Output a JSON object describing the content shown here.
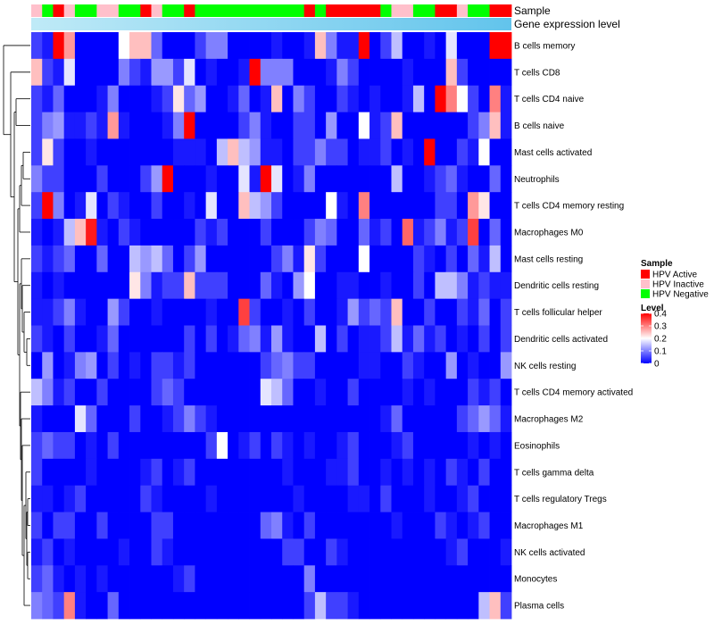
{
  "chart_data": {
    "type": "heatmap",
    "annotations": {
      "sample_track_label": "Sample",
      "expression_track_label": "Gene expression level",
      "sample_groups": [
        "Inactive",
        "Negative",
        "Active",
        "Inactive",
        "Negative",
        "Negative",
        "Inactive",
        "Inactive",
        "Negative",
        "Negative",
        "Active",
        "Inactive",
        "Negative",
        "Negative",
        "Active",
        "Negative",
        "Negative",
        "Negative",
        "Negative",
        "Negative",
        "Negative",
        "Negative",
        "Negative",
        "Negative",
        "Negative",
        "Active",
        "Negative",
        "Active",
        "Active",
        "Active",
        "Active",
        "Active",
        "Negative",
        "Inactive",
        "Inactive",
        "Negative",
        "Negative",
        "Active",
        "Active",
        "Inactive",
        "Negative",
        "Negative",
        "Active",
        "Active"
      ]
    },
    "rows": [
      "B cells memory",
      "T cells CD8",
      "T cells CD4 naive",
      "B cells naive",
      "Mast cells activated",
      "Neutrophils",
      "T cells CD4 memory resting",
      "Macrophages M0",
      "Mast cells resting",
      "Dendritic cells resting",
      "T cells follicular helper",
      "Dendritic cells activated",
      "NK cells resting",
      "T cells CD4 memory activated",
      "Macrophages M2",
      "Eosinophils",
      "T cells gamma delta",
      "T cells regulatory  Tregs",
      "Macrophages M1",
      "NK cells activated",
      "Monocytes",
      "Plasma cells"
    ],
    "n_columns": 44,
    "matrix": [
      [
        0.05,
        0.02,
        0.42,
        0.28,
        0.0,
        0.0,
        0.0,
        0.0,
        0.2,
        0.25,
        0.25,
        0.08,
        0.0,
        0.0,
        0.0,
        0.05,
        0.1,
        0.1,
        0.0,
        0.0,
        0.0,
        0.0,
        0.02,
        0.0,
        0.0,
        0.02,
        0.25,
        0.1,
        0.02,
        0.02,
        0.45,
        0.0,
        0.05,
        0.15,
        0.0,
        0.0,
        0.02,
        0.0,
        0.18,
        0.0,
        0.0,
        0.0,
        0.42,
        0.45
      ],
      [
        0.25,
        0.05,
        0.02,
        0.18,
        0.0,
        0.0,
        0.0,
        0.0,
        0.1,
        0.05,
        0.02,
        0.12,
        0.12,
        0.05,
        0.18,
        0.0,
        0.02,
        0.0,
        0.0,
        0.02,
        0.45,
        0.1,
        0.1,
        0.1,
        0.0,
        0.0,
        0.0,
        0.02,
        0.1,
        0.05,
        0.0,
        0.0,
        0.0,
        0.0,
        0.02,
        0.0,
        0.0,
        0.0,
        0.25,
        0.05,
        0.0,
        0.0,
        0.0,
        0.0
      ],
      [
        0.05,
        0.02,
        0.08,
        0.0,
        0.0,
        0.0,
        0.02,
        0.1,
        0.0,
        0.0,
        0.0,
        0.02,
        0.05,
        0.22,
        0.08,
        0.12,
        0.0,
        0.0,
        0.02,
        0.08,
        0.0,
        0.02,
        0.25,
        0.0,
        0.1,
        0.05,
        0.0,
        0.0,
        0.05,
        0.02,
        0.0,
        0.02,
        0.0,
        0.0,
        0.02,
        0.15,
        0.0,
        0.45,
        0.3,
        0.2,
        0.05,
        0.0,
        0.3,
        0.02
      ],
      [
        0.05,
        0.1,
        0.12,
        0.02,
        0.02,
        0.05,
        0.02,
        0.28,
        0.02,
        0.0,
        0.0,
        0.0,
        0.02,
        0.1,
        0.4,
        0.0,
        0.0,
        0.0,
        0.0,
        0.05,
        0.1,
        0.02,
        0.0,
        0.0,
        0.05,
        0.05,
        0.0,
        0.12,
        0.0,
        0.0,
        0.2,
        0.02,
        0.05,
        0.25,
        0.0,
        0.0,
        0.0,
        0.0,
        0.0,
        0.0,
        0.05,
        0.1,
        0.25,
        0.02
      ],
      [
        0.05,
        0.22,
        0.05,
        0.0,
        0.0,
        0.02,
        0.0,
        0.0,
        0.0,
        0.0,
        0.0,
        0.0,
        0.0,
        0.02,
        0.02,
        0.02,
        0.0,
        0.15,
        0.25,
        0.15,
        0.12,
        0.02,
        0.02,
        0.0,
        0.05,
        0.05,
        0.1,
        0.05,
        0.05,
        0.0,
        0.02,
        0.02,
        0.05,
        0.0,
        0.02,
        0.0,
        0.45,
        0.0,
        0.0,
        0.05,
        0.02,
        0.2,
        0.0,
        0.0
      ],
      [
        0.1,
        0.05,
        0.05,
        0.0,
        0.0,
        0.0,
        0.05,
        0.0,
        0.0,
        0.0,
        0.05,
        0.12,
        0.45,
        0.0,
        0.0,
        0.0,
        0.02,
        0.0,
        0.0,
        0.18,
        0.02,
        0.45,
        0.18,
        0.0,
        0.02,
        0.1,
        0.0,
        0.0,
        0.0,
        0.0,
        0.0,
        0.0,
        0.0,
        0.15,
        0.0,
        0.0,
        0.02,
        0.05,
        0.08,
        0.02,
        0.0,
        0.0,
        0.08,
        0.0
      ],
      [
        0.05,
        0.4,
        0.1,
        0.0,
        0.02,
        0.18,
        0.0,
        0.05,
        0.02,
        0.0,
        0.0,
        0.05,
        0.0,
        0.0,
        0.02,
        0.0,
        0.18,
        0.0,
        0.0,
        0.25,
        0.15,
        0.12,
        0.05,
        0.0,
        0.0,
        0.0,
        0.0,
        0.2,
        0.02,
        0.0,
        0.3,
        0.0,
        0.0,
        0.0,
        0.0,
        0.0,
        0.0,
        0.05,
        0.05,
        0.0,
        0.28,
        0.22,
        0.0,
        0.0
      ],
      [
        0.02,
        0.0,
        0.02,
        0.15,
        0.25,
        0.38,
        0.02,
        0.0,
        0.05,
        0.02,
        0.0,
        0.0,
        0.0,
        0.0,
        0.0,
        0.05,
        0.02,
        0.05,
        0.0,
        0.0,
        0.0,
        0.05,
        0.0,
        0.0,
        0.0,
        0.05,
        0.1,
        0.08,
        0.0,
        0.0,
        0.08,
        0.02,
        0.05,
        0.0,
        0.32,
        0.02,
        0.05,
        0.1,
        0.02,
        0.05,
        0.35,
        0.0,
        0.08,
        0.0
      ],
      [
        0.05,
        0.02,
        0.05,
        0.08,
        0.0,
        0.0,
        0.08,
        0.0,
        0.0,
        0.15,
        0.12,
        0.15,
        0.08,
        0.0,
        0.05,
        0.12,
        0.0,
        0.0,
        0.0,
        0.0,
        0.0,
        0.0,
        0.05,
        0.1,
        0.02,
        0.22,
        0.05,
        0.0,
        0.0,
        0.0,
        0.2,
        0.0,
        0.0,
        0.0,
        0.0,
        0.05,
        0.02,
        0.0,
        0.05,
        0.0,
        0.08,
        0.02,
        0.15,
        0.0
      ],
      [
        0.02,
        0.0,
        0.02,
        0.0,
        0.0,
        0.0,
        0.0,
        0.0,
        0.0,
        0.22,
        0.1,
        0.02,
        0.05,
        0.05,
        0.25,
        0.05,
        0.05,
        0.05,
        0.0,
        0.0,
        0.0,
        0.08,
        0.02,
        0.0,
        0.12,
        0.2,
        0.0,
        0.0,
        0.02,
        0.02,
        0.0,
        0.0,
        0.02,
        0.0,
        0.0,
        0.05,
        0.0,
        0.15,
        0.15,
        0.1,
        0.02,
        0.05,
        0.02,
        0.02
      ],
      [
        0.02,
        0.02,
        0.05,
        0.1,
        0.02,
        0.0,
        0.0,
        0.12,
        0.05,
        0.0,
        0.0,
        0.02,
        0.0,
        0.0,
        0.0,
        0.0,
        0.02,
        0.0,
        0.0,
        0.35,
        0.05,
        0.0,
        0.0,
        0.02,
        0.0,
        0.05,
        0.0,
        0.0,
        0.02,
        0.12,
        0.05,
        0.08,
        0.05,
        0.25,
        0.0,
        0.0,
        0.05,
        0.0,
        0.0,
        0.05,
        0.02,
        0.08,
        0.0,
        0.05
      ],
      [
        0.05,
        0.02,
        0.0,
        0.05,
        0.0,
        0.0,
        0.02,
        0.08,
        0.0,
        0.0,
        0.0,
        0.0,
        0.0,
        0.0,
        0.05,
        0.0,
        0.05,
        0.0,
        0.02,
        0.08,
        0.1,
        0.02,
        0.12,
        0.02,
        0.0,
        0.0,
        0.15,
        0.0,
        0.05,
        0.0,
        0.02,
        0.02,
        0.05,
        0.15,
        0.02,
        0.08,
        0.02,
        0.05,
        0.0,
        0.02,
        0.0,
        0.05,
        0.0,
        0.05
      ],
      [
        0.0,
        0.12,
        0.0,
        0.02,
        0.1,
        0.12,
        0.0,
        0.05,
        0.0,
        0.02,
        0.0,
        0.05,
        0.05,
        0.02,
        0.05,
        0.0,
        0.0,
        0.0,
        0.0,
        0.0,
        0.0,
        0.05,
        0.08,
        0.1,
        0.05,
        0.05,
        0.0,
        0.0,
        0.0,
        0.0,
        0.02,
        0.02,
        0.0,
        0.0,
        0.05,
        0.02,
        0.0,
        0.0,
        0.12,
        0.0,
        0.02,
        0.0,
        0.0,
        0.12
      ],
      [
        0.15,
        0.1,
        0.02,
        0.05,
        0.0,
        0.0,
        0.05,
        0.0,
        0.0,
        0.0,
        0.0,
        0.05,
        0.08,
        0.05,
        0.0,
        0.0,
        0.0,
        0.0,
        0.0,
        0.0,
        0.0,
        0.18,
        0.15,
        0.08,
        0.0,
        0.0,
        0.02,
        0.0,
        0.0,
        0.05,
        0.0,
        0.0,
        0.0,
        0.0,
        0.02,
        0.0,
        0.02,
        0.0,
        0.0,
        0.0,
        0.05,
        0.02,
        0.05,
        0.0
      ],
      [
        0.02,
        0.0,
        0.0,
        0.0,
        0.18,
        0.08,
        0.0,
        0.0,
        0.0,
        0.05,
        0.0,
        0.0,
        0.02,
        0.05,
        0.1,
        0.05,
        0.02,
        0.0,
        0.0,
        0.0,
        0.0,
        0.0,
        0.0,
        0.0,
        0.0,
        0.0,
        0.0,
        0.0,
        0.0,
        0.0,
        0.0,
        0.0,
        0.02,
        0.08,
        0.0,
        0.0,
        0.0,
        0.0,
        0.0,
        0.05,
        0.08,
        0.12,
        0.08,
        0.02
      ],
      [
        0.05,
        0.08,
        0.05,
        0.05,
        0.0,
        0.02,
        0.0,
        0.05,
        0.0,
        0.0,
        0.0,
        0.0,
        0.0,
        0.0,
        0.0,
        0.0,
        0.05,
        0.2,
        0.0,
        0.02,
        0.05,
        0.0,
        0.05,
        0.02,
        0.0,
        0.02,
        0.0,
        0.0,
        0.02,
        0.05,
        0.0,
        0.0,
        0.0,
        0.02,
        0.05,
        0.0,
        0.0,
        0.0,
        0.0,
        0.0,
        0.02,
        0.0,
        0.02,
        0.0
      ],
      [
        0.05,
        0.0,
        0.0,
        0.0,
        0.0,
        0.02,
        0.0,
        0.0,
        0.0,
        0.0,
        0.02,
        0.05,
        0.0,
        0.02,
        0.05,
        0.0,
        0.0,
        0.0,
        0.0,
        0.0,
        0.0,
        0.0,
        0.0,
        0.02,
        0.0,
        0.0,
        0.0,
        0.02,
        0.02,
        0.05,
        0.0,
        0.0,
        0.02,
        0.0,
        0.02,
        0.0,
        0.02,
        0.0,
        0.05,
        0.02,
        0.0,
        0.05,
        0.0,
        0.0
      ],
      [
        0.02,
        0.02,
        0.0,
        0.02,
        0.05,
        0.0,
        0.0,
        0.0,
        0.0,
        0.0,
        0.05,
        0.02,
        0.0,
        0.0,
        0.0,
        0.0,
        0.02,
        0.0,
        0.0,
        0.0,
        0.0,
        0.0,
        0.0,
        0.0,
        0.02,
        0.0,
        0.0,
        0.0,
        0.0,
        0.02,
        0.02,
        0.0,
        0.05,
        0.0,
        0.0,
        0.0,
        0.02,
        0.0,
        0.0,
        0.02,
        0.05,
        0.0,
        0.0,
        0.0
      ],
      [
        0.05,
        0.0,
        0.05,
        0.05,
        0.0,
        0.0,
        0.05,
        0.0,
        0.0,
        0.0,
        0.0,
        0.05,
        0.05,
        0.0,
        0.0,
        0.0,
        0.0,
        0.0,
        0.0,
        0.0,
        0.0,
        0.08,
        0.1,
        0.02,
        0.0,
        0.05,
        0.0,
        0.0,
        0.0,
        0.0,
        0.0,
        0.0,
        0.0,
        0.02,
        0.0,
        0.0,
        0.0,
        0.05,
        0.02,
        0.0,
        0.02,
        0.05,
        0.0,
        0.0
      ],
      [
        0.02,
        0.05,
        0.0,
        0.02,
        0.0,
        0.0,
        0.0,
        0.0,
        0.02,
        0.0,
        0.0,
        0.05,
        0.02,
        0.0,
        0.0,
        0.0,
        0.0,
        0.0,
        0.0,
        0.0,
        0.0,
        0.0,
        0.0,
        0.05,
        0.05,
        0.0,
        0.0,
        0.05,
        0.02,
        0.0,
        0.0,
        0.0,
        0.0,
        0.0,
        0.0,
        0.0,
        0.0,
        0.0,
        0.02,
        0.05,
        0.0,
        0.0,
        0.0,
        0.02
      ],
      [
        0.05,
        0.08,
        0.02,
        0.0,
        0.02,
        0.0,
        0.02,
        0.0,
        0.0,
        0.0,
        0.0,
        0.0,
        0.0,
        0.02,
        0.05,
        0.0,
        0.0,
        0.0,
        0.0,
        0.0,
        0.0,
        0.0,
        0.0,
        0.0,
        0.0,
        0.1,
        0.0,
        0.0,
        0.0,
        0.0,
        0.0,
        0.0,
        0.0,
        0.0,
        0.0,
        0.0,
        0.0,
        0.0,
        0.0,
        0.0,
        0.0,
        0.0,
        0.0,
        0.0
      ],
      [
        0.1,
        0.08,
        0.05,
        0.3,
        0.02,
        0.0,
        0.0,
        0.08,
        0.0,
        0.0,
        0.0,
        0.0,
        0.0,
        0.0,
        0.0,
        0.0,
        0.0,
        0.0,
        0.0,
        0.0,
        0.0,
        0.0,
        0.0,
        0.0,
        0.0,
        0.05,
        0.15,
        0.05,
        0.05,
        0.02,
        0.0,
        0.0,
        0.0,
        0.0,
        0.0,
        0.0,
        0.0,
        0.0,
        0.0,
        0.0,
        0.0,
        0.15,
        0.25,
        0.05
      ]
    ],
    "legend": {
      "sample_title": "Sample",
      "sample_items": [
        {
          "label": "HPV Active",
          "key": "Active",
          "color": "#ff0000"
        },
        {
          "label": "HPV Inactive",
          "key": "Inactive",
          "color": "#ffc0cb"
        },
        {
          "label": "HPV Negative",
          "key": "Negative",
          "color": "#00ff00"
        }
      ],
      "level_title": "Level",
      "level_ticks": [
        "0.4",
        "0.3",
        "0.2",
        "0.1",
        "0"
      ],
      "level_range": [
        0,
        0.4
      ],
      "color_low": "#0000ff",
      "color_mid": "#ffffff",
      "color_high": "#ff0000"
    },
    "expression_bar_colors": [
      "#bfeaf7",
      "#62c4ec"
    ]
  }
}
